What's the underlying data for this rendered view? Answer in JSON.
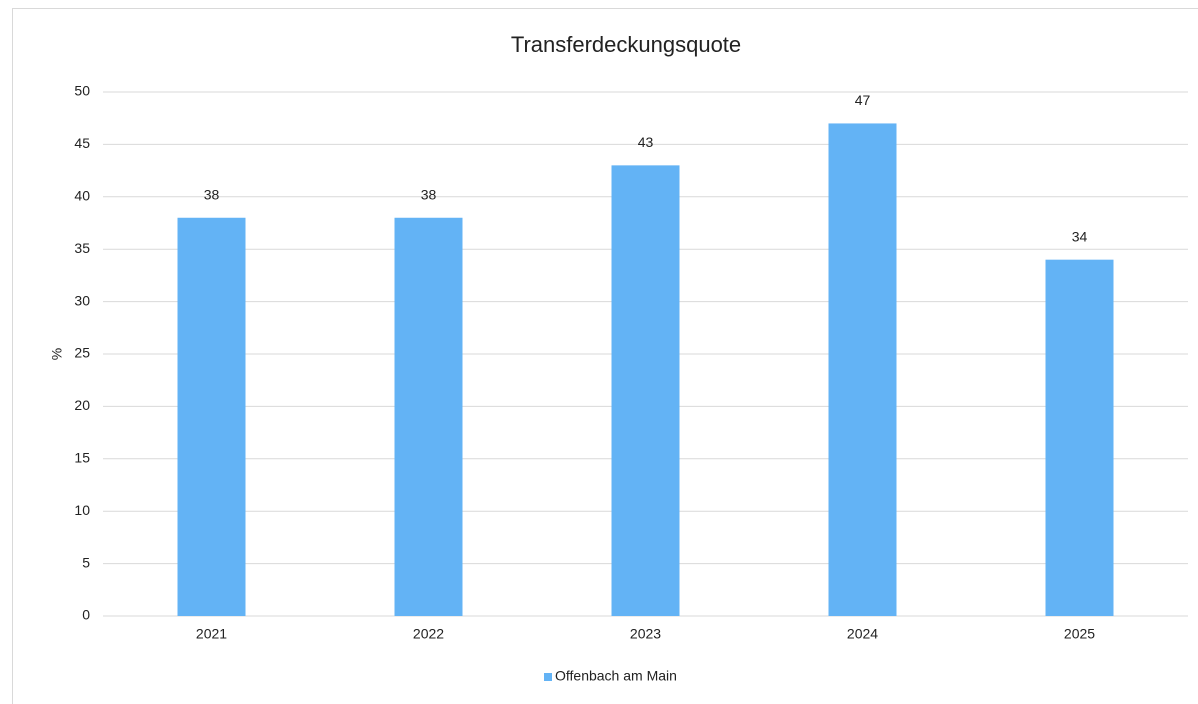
{
  "chart_data": {
    "type": "bar",
    "title": "Transferdeckungsquote",
    "y_label": "%",
    "categories": [
      "2021",
      "2022",
      "2023",
      "2024",
      "2025"
    ],
    "series": [
      {
        "name": "Offenbach am Main",
        "color": "#63b3f5",
        "values": [
          38,
          38,
          43,
          47,
          34
        ]
      }
    ],
    "ylim": [
      0,
      50
    ],
    "yticks": [
      0,
      5,
      10,
      15,
      20,
      25,
      30,
      35,
      40,
      45,
      50
    ],
    "grid": true,
    "legend": "bottom"
  }
}
